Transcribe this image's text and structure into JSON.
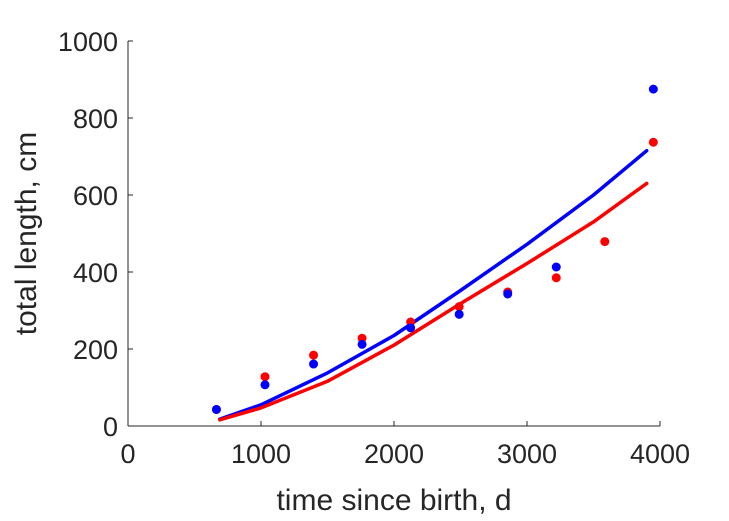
{
  "chart_data": {
    "type": "scatter",
    "title": "",
    "xlabel": "time since birth, d",
    "ylabel": "total length, cm",
    "xlim": [
      0,
      4000
    ],
    "ylim": [
      0,
      1000
    ],
    "xticks": [
      0,
      1000,
      2000,
      3000,
      4000
    ],
    "yticks": [
      0,
      200,
      400,
      600,
      800,
      1000
    ],
    "xtick_labels": [
      "0",
      "1000",
      "2000",
      "3000",
      "4000"
    ],
    "ytick_labels": [
      "0",
      "200",
      "400",
      "600",
      "800",
      "1000"
    ],
    "grid": false,
    "legend": "none",
    "series": [
      {
        "kind": "points",
        "color": "#ff0000",
        "x": [
          665,
          1030,
          1395,
          1760,
          2125,
          2490,
          2855,
          3220,
          3585,
          3950
        ],
        "y": [
          43,
          128,
          184,
          228,
          270,
          310,
          348,
          385,
          479,
          737
        ]
      },
      {
        "kind": "points",
        "color": "#0000ff",
        "x": [
          665,
          1030,
          1395,
          1760,
          2125,
          2490,
          2855,
          3220,
          3950
        ],
        "y": [
          43,
          107,
          161,
          212,
          255,
          290,
          343,
          413,
          875
        ]
      },
      {
        "kind": "line",
        "color": "#0000ff",
        "x": [
          690,
          1000,
          1500,
          2000,
          2500,
          3000,
          3500,
          3900
        ],
        "y": [
          18,
          55,
          138,
          235,
          352,
          472,
          600,
          715
        ]
      },
      {
        "kind": "line",
        "color": "#ff0000",
        "x": [
          690,
          1000,
          1500,
          2000,
          2500,
          3000,
          3500,
          3900
        ],
        "y": [
          16,
          47,
          116,
          210,
          318,
          422,
          530,
          630
        ]
      }
    ]
  }
}
